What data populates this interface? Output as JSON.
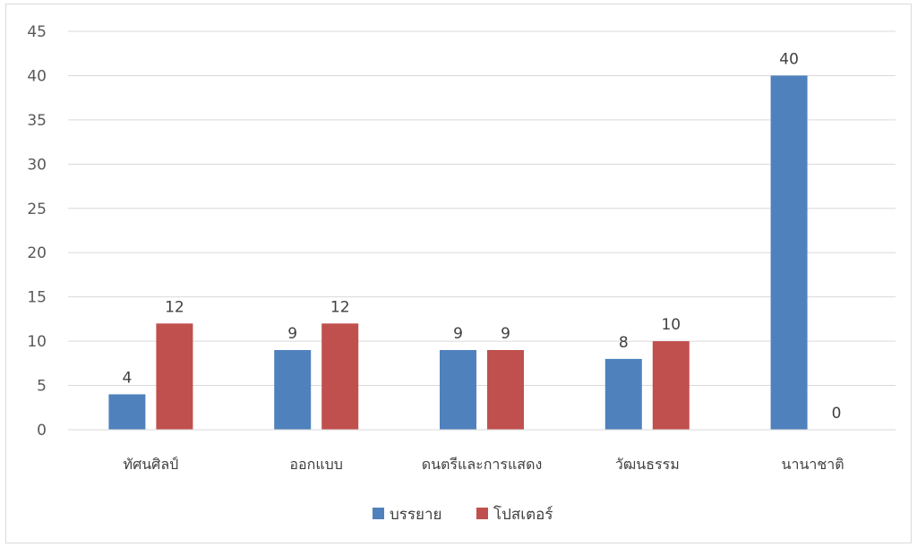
{
  "chart_data": {
    "type": "bar",
    "categories": [
      "ทัศนศิลป์",
      "ออกแบบ",
      "ดนตรีและการแสดง",
      "วัฒนธรรม",
      "นานาชาติ"
    ],
    "series": [
      {
        "name": "บรรยาย",
        "values": [
          4,
          9,
          9,
          8,
          40
        ],
        "color": "#4f81bd"
      },
      {
        "name": "โปสเตอร์",
        "values": [
          12,
          12,
          9,
          10,
          0
        ],
        "color": "#c0504d"
      }
    ],
    "ylim": [
      0,
      45
    ],
    "yticks": [
      0,
      5,
      10,
      15,
      20,
      25,
      30,
      35,
      40,
      45
    ],
    "grid": true,
    "legend": "bottom",
    "data_labels": true
  }
}
